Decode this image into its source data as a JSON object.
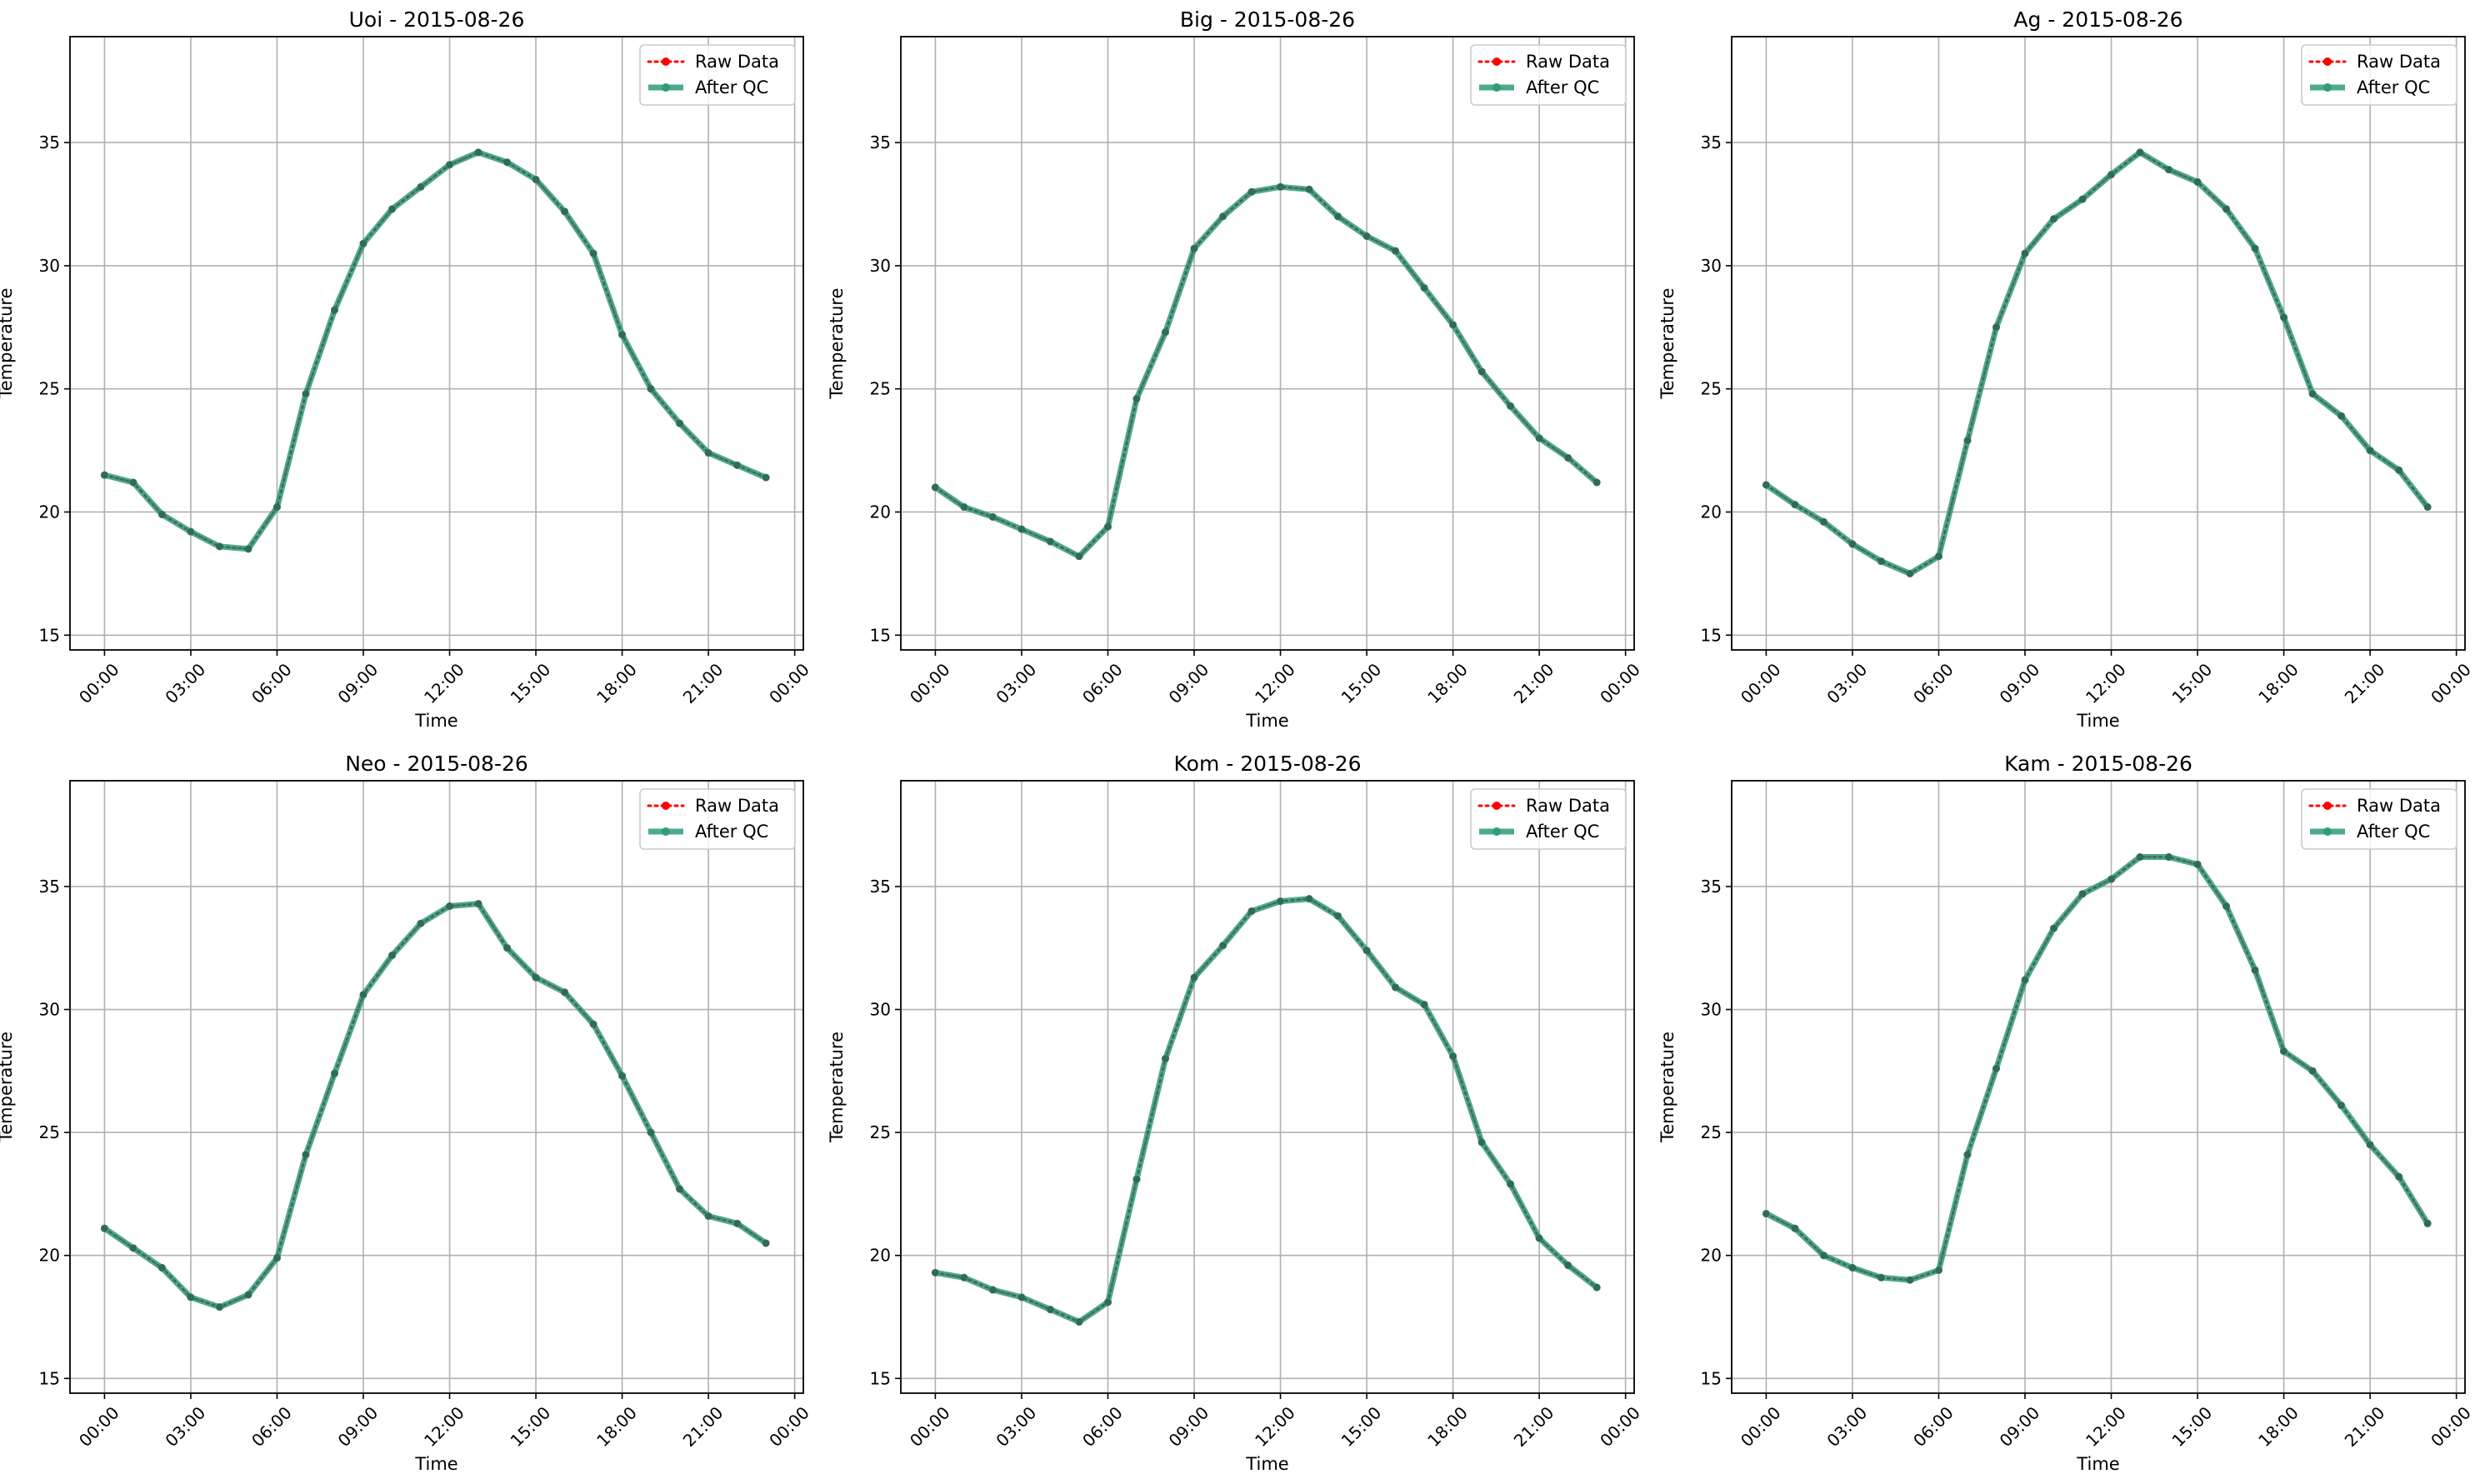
{
  "chart_data": [
    {
      "type": "line",
      "title": "Uoi - 2015-08-26",
      "xlabel": "Time",
      "ylabel": "Temperature",
      "x_ticks": [
        "00:00",
        "03:00",
        "06:00",
        "09:00",
        "12:00",
        "15:00",
        "18:00",
        "21:00",
        "00:00"
      ],
      "y_ticks": [
        15,
        20,
        25,
        30,
        35
      ],
      "xlim_hours": [
        -1.2,
        24.3
      ],
      "ylim": [
        14.4,
        39.3
      ],
      "grid": true,
      "legend_position": "top-right",
      "x_hours": [
        0,
        1,
        2,
        3,
        4,
        5,
        6,
        7,
        8,
        9,
        10,
        11,
        12,
        13,
        14,
        15,
        16,
        17,
        18,
        19,
        20,
        21,
        22,
        23
      ],
      "series": [
        {
          "name": "Raw Data",
          "style": "dotted-marker",
          "color": "#ff0000",
          "values": [
            21.5,
            21.2,
            19.9,
            19.2,
            18.6,
            18.5,
            20.2,
            24.8,
            28.2,
            30.9,
            32.3,
            33.2,
            34.1,
            34.6,
            34.2,
            33.5,
            32.2,
            30.5,
            27.2,
            25.0,
            23.6,
            22.4,
            21.9,
            21.4
          ]
        },
        {
          "name": "After QC",
          "style": "solid-marker",
          "color": "#2e9b7a",
          "values": [
            21.5,
            21.2,
            19.9,
            19.2,
            18.6,
            18.5,
            20.2,
            24.8,
            28.2,
            30.9,
            32.3,
            33.2,
            34.1,
            34.6,
            34.2,
            33.5,
            32.2,
            30.5,
            27.2,
            25.0,
            23.6,
            22.4,
            21.9,
            21.4
          ]
        }
      ]
    },
    {
      "type": "line",
      "title": "Big - 2015-08-26",
      "xlabel": "Time",
      "ylabel": "Temperature",
      "x_ticks": [
        "00:00",
        "03:00",
        "06:00",
        "09:00",
        "12:00",
        "15:00",
        "18:00",
        "21:00",
        "00:00"
      ],
      "y_ticks": [
        15,
        20,
        25,
        30,
        35
      ],
      "xlim_hours": [
        -1.2,
        24.3
      ],
      "ylim": [
        14.4,
        39.3
      ],
      "grid": true,
      "legend_position": "top-right",
      "x_hours": [
        0,
        1,
        2,
        3,
        4,
        5,
        6,
        7,
        8,
        9,
        10,
        11,
        12,
        13,
        14,
        15,
        16,
        17,
        18,
        19,
        20,
        21,
        22,
        23
      ],
      "series": [
        {
          "name": "Raw Data",
          "style": "dotted-marker",
          "color": "#ff0000",
          "values": [
            21.0,
            20.2,
            19.8,
            19.3,
            18.8,
            18.2,
            19.4,
            24.6,
            27.3,
            30.7,
            32.0,
            33.0,
            33.2,
            33.1,
            32.0,
            31.2,
            30.6,
            29.1,
            27.6,
            25.7,
            24.3,
            23.0,
            22.2,
            21.2
          ]
        },
        {
          "name": "After QC",
          "style": "solid-marker",
          "color": "#2e9b7a",
          "values": [
            21.0,
            20.2,
            19.8,
            19.3,
            18.8,
            18.2,
            19.4,
            24.6,
            27.3,
            30.7,
            32.0,
            33.0,
            33.2,
            33.1,
            32.0,
            31.2,
            30.6,
            29.1,
            27.6,
            25.7,
            24.3,
            23.0,
            22.2,
            21.2
          ]
        }
      ]
    },
    {
      "type": "line",
      "title": "Ag - 2015-08-26",
      "xlabel": "Time",
      "ylabel": "Temperature",
      "x_ticks": [
        "00:00",
        "03:00",
        "06:00",
        "09:00",
        "12:00",
        "15:00",
        "18:00",
        "21:00",
        "00:00"
      ],
      "y_ticks": [
        15,
        20,
        25,
        30,
        35
      ],
      "xlim_hours": [
        -1.2,
        24.3
      ],
      "ylim": [
        14.4,
        39.3
      ],
      "grid": true,
      "legend_position": "top-right",
      "x_hours": [
        0,
        1,
        2,
        3,
        4,
        5,
        6,
        7,
        8,
        9,
        10,
        11,
        12,
        13,
        14,
        15,
        16,
        17,
        18,
        19,
        20,
        21,
        22,
        23
      ],
      "series": [
        {
          "name": "Raw Data",
          "style": "dotted-marker",
          "color": "#ff0000",
          "values": [
            21.1,
            20.3,
            19.6,
            18.7,
            18.0,
            17.5,
            18.2,
            22.9,
            27.5,
            30.5,
            31.9,
            32.7,
            33.7,
            34.6,
            33.9,
            33.4,
            32.3,
            30.7,
            27.9,
            24.8,
            23.9,
            22.5,
            21.7,
            20.2
          ]
        },
        {
          "name": "After QC",
          "style": "solid-marker",
          "color": "#2e9b7a",
          "values": [
            21.1,
            20.3,
            19.6,
            18.7,
            18.0,
            17.5,
            18.2,
            22.9,
            27.5,
            30.5,
            31.9,
            32.7,
            33.7,
            34.6,
            33.9,
            33.4,
            32.3,
            30.7,
            27.9,
            24.8,
            23.9,
            22.5,
            21.7,
            20.2
          ]
        }
      ]
    },
    {
      "type": "line",
      "title": "Neo - 2015-08-26",
      "xlabel": "Time",
      "ylabel": "Temperature",
      "x_ticks": [
        "00:00",
        "03:00",
        "06:00",
        "09:00",
        "12:00",
        "15:00",
        "18:00",
        "21:00",
        "00:00"
      ],
      "y_ticks": [
        15,
        20,
        25,
        30,
        35
      ],
      "xlim_hours": [
        -1.2,
        24.3
      ],
      "ylim": [
        14.4,
        39.3
      ],
      "grid": true,
      "legend_position": "top-right",
      "x_hours": [
        0,
        1,
        2,
        3,
        4,
        5,
        6,
        7,
        8,
        9,
        10,
        11,
        12,
        13,
        14,
        15,
        16,
        17,
        18,
        19,
        20,
        21,
        22,
        23
      ],
      "series": [
        {
          "name": "Raw Data",
          "style": "dotted-marker",
          "color": "#ff0000",
          "values": [
            21.1,
            20.3,
            19.5,
            18.3,
            17.9,
            18.4,
            19.9,
            24.1,
            27.4,
            30.6,
            32.2,
            33.5,
            34.2,
            34.3,
            32.5,
            31.3,
            30.7,
            29.4,
            27.3,
            25.0,
            22.7,
            21.6,
            21.3,
            20.5
          ]
        },
        {
          "name": "After QC",
          "style": "solid-marker",
          "color": "#2e9b7a",
          "values": [
            21.1,
            20.3,
            19.5,
            18.3,
            17.9,
            18.4,
            19.9,
            24.1,
            27.4,
            30.6,
            32.2,
            33.5,
            34.2,
            34.3,
            32.5,
            31.3,
            30.7,
            29.4,
            27.3,
            25.0,
            22.7,
            21.6,
            21.3,
            20.5
          ]
        }
      ]
    },
    {
      "type": "line",
      "title": "Kom - 2015-08-26",
      "xlabel": "Time",
      "ylabel": "Temperature",
      "x_ticks": [
        "00:00",
        "03:00",
        "06:00",
        "09:00",
        "12:00",
        "15:00",
        "18:00",
        "21:00",
        "00:00"
      ],
      "y_ticks": [
        15,
        20,
        25,
        30,
        35
      ],
      "xlim_hours": [
        -1.2,
        24.3
      ],
      "ylim": [
        14.4,
        39.3
      ],
      "grid": true,
      "legend_position": "top-right",
      "x_hours": [
        0,
        1,
        2,
        3,
        4,
        5,
        6,
        7,
        8,
        9,
        10,
        11,
        12,
        13,
        14,
        15,
        16,
        17,
        18,
        19,
        20,
        21,
        22,
        23
      ],
      "series": [
        {
          "name": "Raw Data",
          "style": "dotted-marker",
          "color": "#ff0000",
          "values": [
            19.3,
            19.1,
            18.6,
            18.3,
            17.8,
            17.3,
            18.1,
            23.1,
            28.0,
            31.3,
            32.6,
            34.0,
            34.4,
            34.5,
            33.8,
            32.4,
            30.9,
            30.2,
            28.1,
            24.6,
            22.9,
            20.7,
            19.6,
            18.7
          ]
        },
        {
          "name": "After QC",
          "style": "solid-marker",
          "color": "#2e9b7a",
          "values": [
            19.3,
            19.1,
            18.6,
            18.3,
            17.8,
            17.3,
            18.1,
            23.1,
            28.0,
            31.3,
            32.6,
            34.0,
            34.4,
            34.5,
            33.8,
            32.4,
            30.9,
            30.2,
            28.1,
            24.6,
            22.9,
            20.7,
            19.6,
            18.7
          ]
        }
      ]
    },
    {
      "type": "line",
      "title": "Kam - 2015-08-26",
      "xlabel": "Time",
      "ylabel": "Temperature",
      "x_ticks": [
        "00:00",
        "03:00",
        "06:00",
        "09:00",
        "12:00",
        "15:00",
        "18:00",
        "21:00",
        "00:00"
      ],
      "y_ticks": [
        15,
        20,
        25,
        30,
        35
      ],
      "xlim_hours": [
        -1.2,
        24.3
      ],
      "ylim": [
        14.4,
        39.3
      ],
      "grid": true,
      "legend_position": "top-right",
      "x_hours": [
        0,
        1,
        2,
        3,
        4,
        5,
        6,
        7,
        8,
        9,
        10,
        11,
        12,
        13,
        14,
        15,
        16,
        17,
        18,
        19,
        20,
        21,
        22,
        23
      ],
      "series": [
        {
          "name": "Raw Data",
          "style": "dotted-marker",
          "color": "#ff0000",
          "values": [
            21.7,
            21.1,
            20.0,
            19.5,
            19.1,
            19.0,
            19.4,
            24.1,
            27.6,
            31.2,
            33.3,
            34.7,
            35.3,
            36.2,
            36.2,
            35.9,
            34.2,
            31.6,
            28.3,
            27.5,
            26.1,
            24.5,
            23.2,
            21.3
          ]
        },
        {
          "name": "After QC",
          "style": "solid-marker",
          "color": "#2e9b7a",
          "values": [
            21.7,
            21.1,
            20.0,
            19.5,
            19.1,
            19.0,
            19.4,
            24.1,
            27.6,
            31.2,
            33.3,
            34.7,
            35.3,
            36.2,
            36.2,
            35.9,
            34.2,
            31.6,
            28.3,
            27.5,
            26.1,
            24.5,
            23.2,
            21.3
          ]
        }
      ]
    }
  ]
}
